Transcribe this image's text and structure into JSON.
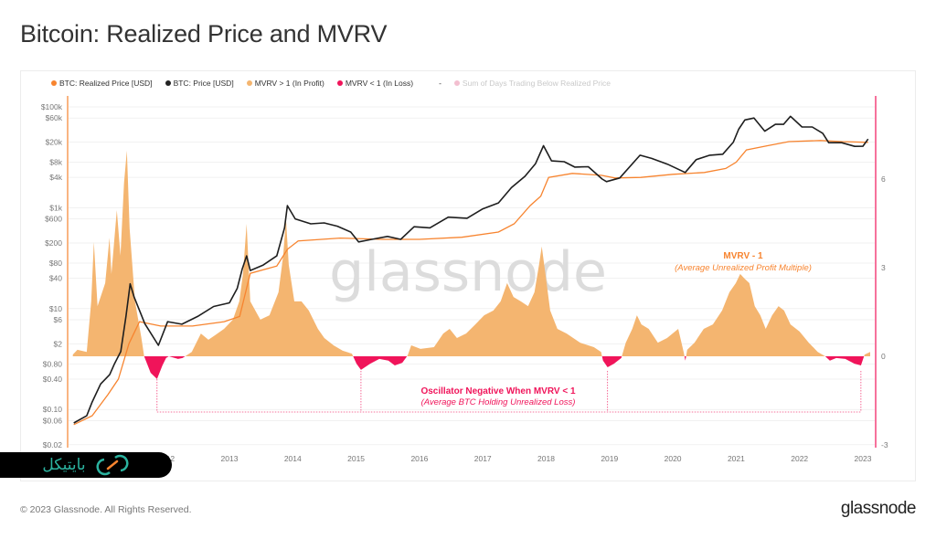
{
  "title": "Bitcoin: Realized Price and MVRV",
  "legend": [
    {
      "label": "BTC: Realized Price [USD]",
      "color": "#f7842f"
    },
    {
      "label": "BTC: Price [USD]",
      "color": "#222222"
    },
    {
      "label": "MVRV > 1 (In Profit)",
      "color": "#f4b570"
    },
    {
      "label": "MVRV < 1 (In Loss)",
      "color": "#f0145a"
    },
    {
      "label": "-",
      "color": ""
    },
    {
      "label": "Sum of Days Trading Below Realized Price",
      "color": "#f3bfd0"
    }
  ],
  "watermark": "glassnode",
  "footer": {
    "copyright": "© 2023 Glassnode. All Rights Reserved.",
    "brand": "glassnode"
  },
  "overlay_logo": {
    "text": "بایتیکل",
    "icon": "bicycle-logo-icon"
  },
  "chart_data": {
    "type": "line",
    "title": "Bitcoin: Realized Price and MVRV",
    "y_scale": "log",
    "y_ticks": [
      "$100k",
      "$60k",
      "$20k",
      "$8k",
      "$4k",
      "$1k",
      "$600",
      "$200",
      "$80",
      "$40",
      "$10",
      "$6",
      "$2",
      "$0.80",
      "$0.40",
      "$0.10",
      "$0.06",
      "$0.02"
    ],
    "y_tick_values": [
      100000,
      60000,
      20000,
      8000,
      4000,
      1000,
      600,
      200,
      80,
      40,
      10,
      6,
      2,
      0.8,
      0.4,
      0.1,
      0.06,
      0.02
    ],
    "ylim": [
      0.02,
      100000
    ],
    "y2_ticks": [
      "6",
      "3",
      "0",
      "-3"
    ],
    "y2_tick_values": [
      6,
      3,
      0,
      -3
    ],
    "y2lim": [
      -3,
      6
    ],
    "x_ticks": [
      "2012",
      "2013",
      "2014",
      "2015",
      "2016",
      "2017",
      "2018",
      "2019",
      "2020",
      "2021",
      "2022",
      "2023"
    ],
    "xlim": [
      "2010-07",
      "2023-02"
    ],
    "grid": true,
    "legend_placement": "top-left",
    "annotations": {
      "mvrv_title": "MVRV - 1",
      "mvrv_sub": "(Average Unrealized Profit Multiple)",
      "neg_title": "Oscillator Negative When MVRV < 1",
      "neg_sub": "(Average BTC Holding Unrealized Loss)",
      "loss_period_markers": [
        "2011-11-10",
        "2015-01-29",
        "2018-12-21",
        "2022-12-21"
      ]
    },
    "series": [
      {
        "name": "BTC: Price [USD]",
        "color": "#222222",
        "axis": "left",
        "points": [
          [
            "2010-07-18",
            0.054
          ],
          [
            "2010-10-01",
            0.075
          ],
          [
            "2010-11-01",
            0.14
          ],
          [
            "2010-12-20",
            0.32
          ],
          [
            "2011-02-10",
            0.49
          ],
          [
            "2011-03-10",
            0.81
          ],
          [
            "2011-04-15",
            1.4
          ],
          [
            "2011-05-15",
            7
          ],
          [
            "2011-06-08",
            31
          ],
          [
            "2011-07-01",
            17
          ],
          [
            "2011-09-01",
            5
          ],
          [
            "2011-11-18",
            1.87
          ],
          [
            "2012-01-10",
            5.5
          ],
          [
            "2012-04-01",
            4.9
          ],
          [
            "2012-07-01",
            7
          ],
          [
            "2012-10-01",
            11
          ],
          [
            "2013-01-01",
            13
          ],
          [
            "2013-02-15",
            25
          ],
          [
            "2013-03-15",
            60
          ],
          [
            "2013-04-10",
            111
          ],
          [
            "2013-05-01",
            57
          ],
          [
            "2013-07-15",
            73
          ],
          [
            "2013-10-01",
            111
          ],
          [
            "2013-11-15",
            400
          ],
          [
            "2013-12-01",
            1100
          ],
          [
            "2014-01-15",
            600
          ],
          [
            "2014-04-15",
            480
          ],
          [
            "2014-07-01",
            500
          ],
          [
            "2014-09-15",
            430
          ],
          [
            "2014-12-01",
            330
          ],
          [
            "2015-01-15",
            210
          ],
          [
            "2015-04-01",
            236
          ],
          [
            "2015-07-01",
            270
          ],
          [
            "2015-09-15",
            236
          ],
          [
            "2015-12-01",
            420
          ],
          [
            "2016-03-01",
            400
          ],
          [
            "2016-06-15",
            650
          ],
          [
            "2016-10-01",
            620
          ],
          [
            "2017-01-01",
            950
          ],
          [
            "2017-04-01",
            1250
          ],
          [
            "2017-06-15",
            2500
          ],
          [
            "2017-09-01",
            4200
          ],
          [
            "2017-11-01",
            7500
          ],
          [
            "2017-12-17",
            17000
          ],
          [
            "2018-02-01",
            8500
          ],
          [
            "2018-04-15",
            8200
          ],
          [
            "2018-06-15",
            6400
          ],
          [
            "2018-09-01",
            6500
          ],
          [
            "2018-11-20",
            3700
          ],
          [
            "2018-12-15",
            3300
          ],
          [
            "2019-03-01",
            3900
          ],
          [
            "2019-06-26",
            11000
          ],
          [
            "2019-09-01",
            9500
          ],
          [
            "2019-12-01",
            7300
          ],
          [
            "2020-03-12",
            5000
          ],
          [
            "2020-05-15",
            9000
          ],
          [
            "2020-08-01",
            11000
          ],
          [
            "2020-10-15",
            11500
          ],
          [
            "2020-12-15",
            20000
          ],
          [
            "2021-01-15",
            36000
          ],
          [
            "2021-02-20",
            55000
          ],
          [
            "2021-04-14",
            60000
          ],
          [
            "2021-06-15",
            33000
          ],
          [
            "2021-08-15",
            45000
          ],
          [
            "2021-10-01",
            45000
          ],
          [
            "2021-11-10",
            65000
          ],
          [
            "2022-01-15",
            40000
          ],
          [
            "2022-03-15",
            40000
          ],
          [
            "2022-05-15",
            30000
          ],
          [
            "2022-06-18",
            19500
          ],
          [
            "2022-09-01",
            19500
          ],
          [
            "2022-11-15",
            16500
          ],
          [
            "2023-01-01",
            16600
          ],
          [
            "2023-01-31",
            23000
          ]
        ]
      },
      {
        "name": "BTC: Realized Price [USD]",
        "color": "#f7842f",
        "axis": "left",
        "points": [
          [
            "2010-07-18",
            0.05
          ],
          [
            "2010-11-01",
            0.075
          ],
          [
            "2011-02-01",
            0.2
          ],
          [
            "2011-04-01",
            0.4
          ],
          [
            "2011-06-01",
            2
          ],
          [
            "2011-08-01",
            5.5
          ],
          [
            "2011-12-01",
            4.5
          ],
          [
            "2012-06-01",
            4.5
          ],
          [
            "2012-12-01",
            5.5
          ],
          [
            "2013-03-01",
            7
          ],
          [
            "2013-05-01",
            50
          ],
          [
            "2013-10-01",
            70
          ],
          [
            "2013-12-01",
            150
          ],
          [
            "2014-02-01",
            220
          ],
          [
            "2014-10-01",
            250
          ],
          [
            "2015-06-01",
            236
          ],
          [
            "2016-01-01",
            236
          ],
          [
            "2016-09-01",
            260
          ],
          [
            "2017-04-01",
            330
          ],
          [
            "2017-07-01",
            480
          ],
          [
            "2017-10-01",
            1100
          ],
          [
            "2017-12-01",
            1700
          ],
          [
            "2018-01-15",
            4000
          ],
          [
            "2018-06-01",
            4800
          ],
          [
            "2018-11-15",
            4400
          ],
          [
            "2019-02-01",
            3900
          ],
          [
            "2019-07-01",
            4000
          ],
          [
            "2020-01-01",
            4600
          ],
          [
            "2020-07-01",
            5000
          ],
          [
            "2020-11-01",
            6000
          ],
          [
            "2021-01-01",
            8000
          ],
          [
            "2021-03-01",
            14000
          ],
          [
            "2021-07-01",
            17000
          ],
          [
            "2021-11-01",
            20500
          ],
          [
            "2022-05-01",
            21500
          ],
          [
            "2022-09-01",
            20500
          ],
          [
            "2023-01-31",
            19800
          ]
        ]
      },
      {
        "name": "MVRV - 1",
        "axis": "right",
        "color_positive": "#f4b570",
        "color_negative": "#f0145a",
        "points": [
          [
            "2010-07-13",
            0.06
          ],
          [
            "2010-08-08",
            0.22
          ],
          [
            "2010-10-01",
            0.15
          ],
          [
            "2010-10-27",
            1.86
          ],
          [
            "2010-11-11",
            3.87
          ],
          [
            "2010-12-02",
            1.7
          ],
          [
            "2011-01-15",
            2.48
          ],
          [
            "2011-02-09",
            4.02
          ],
          [
            "2011-02-20",
            2.79
          ],
          [
            "2011-03-23",
            4.95
          ],
          [
            "2011-04-13",
            3.41
          ],
          [
            "2011-05-04",
            5.88
          ],
          [
            "2011-05-20",
            6.97
          ],
          [
            "2011-06-05",
            4.33
          ],
          [
            "2011-07-06",
            1.86
          ],
          [
            "2011-08-12",
            0.62
          ],
          [
            "2011-08-28",
            0
          ],
          [
            "2011-10-04",
            -0.56
          ],
          [
            "2011-11-10",
            -0.77
          ],
          [
            "2011-12-11",
            -0.31
          ],
          [
            "2012-01-01",
            -0.06
          ],
          [
            "2012-01-17",
            0
          ],
          [
            "2012-03-10",
            -0.09
          ],
          [
            "2012-04-05",
            -0.06
          ],
          [
            "2012-05-28",
            0.15
          ],
          [
            "2012-07-20",
            0.77
          ],
          [
            "2012-09-01",
            0.56
          ],
          [
            "2012-10-08",
            0.71
          ],
          [
            "2012-11-30",
            0.93
          ],
          [
            "2013-01-21",
            1.24
          ],
          [
            "2013-02-27",
            1.86
          ],
          [
            "2013-03-20",
            2.79
          ],
          [
            "2013-04-10",
            4.49
          ],
          [
            "2013-05-01",
            1.86
          ],
          [
            "2013-06-28",
            1.24
          ],
          [
            "2013-08-20",
            1.39
          ],
          [
            "2013-10-11",
            2.17
          ],
          [
            "2013-11-07",
            3.41
          ],
          [
            "2013-11-23",
            4.64
          ],
          [
            "2013-12-09",
            3.1
          ],
          [
            "2014-01-10",
            1.86
          ],
          [
            "2014-02-20",
            1.86
          ],
          [
            "2014-04-03",
            1.55
          ],
          [
            "2014-05-26",
            0.93
          ],
          [
            "2014-07-02",
            0.62
          ],
          [
            "2014-08-24",
            0.37
          ],
          [
            "2014-10-16",
            0.19
          ],
          [
            "2014-12-08",
            0.09
          ],
          [
            "2015-01-03",
            -0.25
          ],
          [
            "2015-01-29",
            -0.46
          ],
          [
            "2015-03-23",
            -0.25
          ],
          [
            "2015-05-15",
            -0.09
          ],
          [
            "2015-07-06",
            -0.15
          ],
          [
            "2015-08-12",
            -0.31
          ],
          [
            "2015-09-24",
            -0.22
          ],
          [
            "2015-10-25",
            0.03
          ],
          [
            "2015-11-15",
            0.37
          ],
          [
            "2016-01-07",
            0.25
          ],
          [
            "2016-03-25",
            0.31
          ],
          [
            "2016-05-17",
            0.77
          ],
          [
            "2016-06-23",
            0.93
          ],
          [
            "2016-08-04",
            0.62
          ],
          [
            "2016-09-26",
            0.77
          ],
          [
            "2016-11-18",
            1.08
          ],
          [
            "2017-01-09",
            1.39
          ],
          [
            "2017-03-03",
            1.55
          ],
          [
            "2017-04-14",
            1.86
          ],
          [
            "2017-05-21",
            2.48
          ],
          [
            "2017-06-27",
            2.01
          ],
          [
            "2017-08-08",
            1.86
          ],
          [
            "2017-09-19",
            1.7
          ],
          [
            "2017-10-26",
            2.17
          ],
          [
            "2017-11-21",
            3.1
          ],
          [
            "2017-12-07",
            3.72
          ],
          [
            "2017-12-28",
            2.79
          ],
          [
            "2018-01-24",
            1.55
          ],
          [
            "2018-03-07",
            0.93
          ],
          [
            "2018-04-29",
            0.77
          ],
          [
            "2018-07-16",
            0.46
          ],
          [
            "2018-10-03",
            0.31
          ],
          [
            "2018-11-14",
            0.15
          ],
          [
            "2018-11-25",
            -0.15
          ],
          [
            "2018-12-21",
            -0.37
          ],
          [
            "2019-01-27",
            -0.25
          ],
          [
            "2019-03-10",
            -0.06
          ],
          [
            "2019-04-05",
            0.46
          ],
          [
            "2019-05-12",
            0.93
          ],
          [
            "2019-06-08",
            1.39
          ],
          [
            "2019-07-04",
            1.08
          ],
          [
            "2019-08-15",
            0.93
          ],
          [
            "2019-10-07",
            0.46
          ],
          [
            "2019-11-29",
            0.62
          ],
          [
            "2020-02-01",
            0.93
          ],
          [
            "2020-03-03",
            0.15
          ],
          [
            "2020-03-13",
            -0.15
          ],
          [
            "2020-03-24",
            0.22
          ],
          [
            "2020-05-05",
            0.46
          ],
          [
            "2020-06-27",
            0.93
          ],
          [
            "2020-08-19",
            1.08
          ],
          [
            "2020-10-11",
            1.55
          ],
          [
            "2020-11-22",
            2.17
          ],
          [
            "2020-12-29",
            2.48
          ],
          [
            "2021-01-24",
            2.79
          ],
          [
            "2021-02-19",
            2.63
          ],
          [
            "2021-03-18",
            2.48
          ],
          [
            "2021-04-18",
            1.7
          ],
          [
            "2021-05-20",
            1.39
          ],
          [
            "2021-06-20",
            0.93
          ],
          [
            "2021-07-27",
            1.39
          ],
          [
            "2021-09-02",
            1.7
          ],
          [
            "2021-10-04",
            1.55
          ],
          [
            "2021-11-10",
            1.08
          ],
          [
            "2022-01-01",
            0.84
          ],
          [
            "2022-02-23",
            0.46
          ],
          [
            "2022-04-16",
            0.15
          ],
          [
            "2022-05-29",
            0
          ],
          [
            "2022-06-25",
            -0.15
          ],
          [
            "2022-08-01",
            -0.06
          ],
          [
            "2022-09-22",
            -0.09
          ],
          [
            "2022-11-14",
            -0.25
          ],
          [
            "2022-12-21",
            -0.31
          ],
          [
            "2023-01-11",
            0.06
          ],
          [
            "2023-02-12",
            0.15
          ]
        ]
      }
    ]
  }
}
